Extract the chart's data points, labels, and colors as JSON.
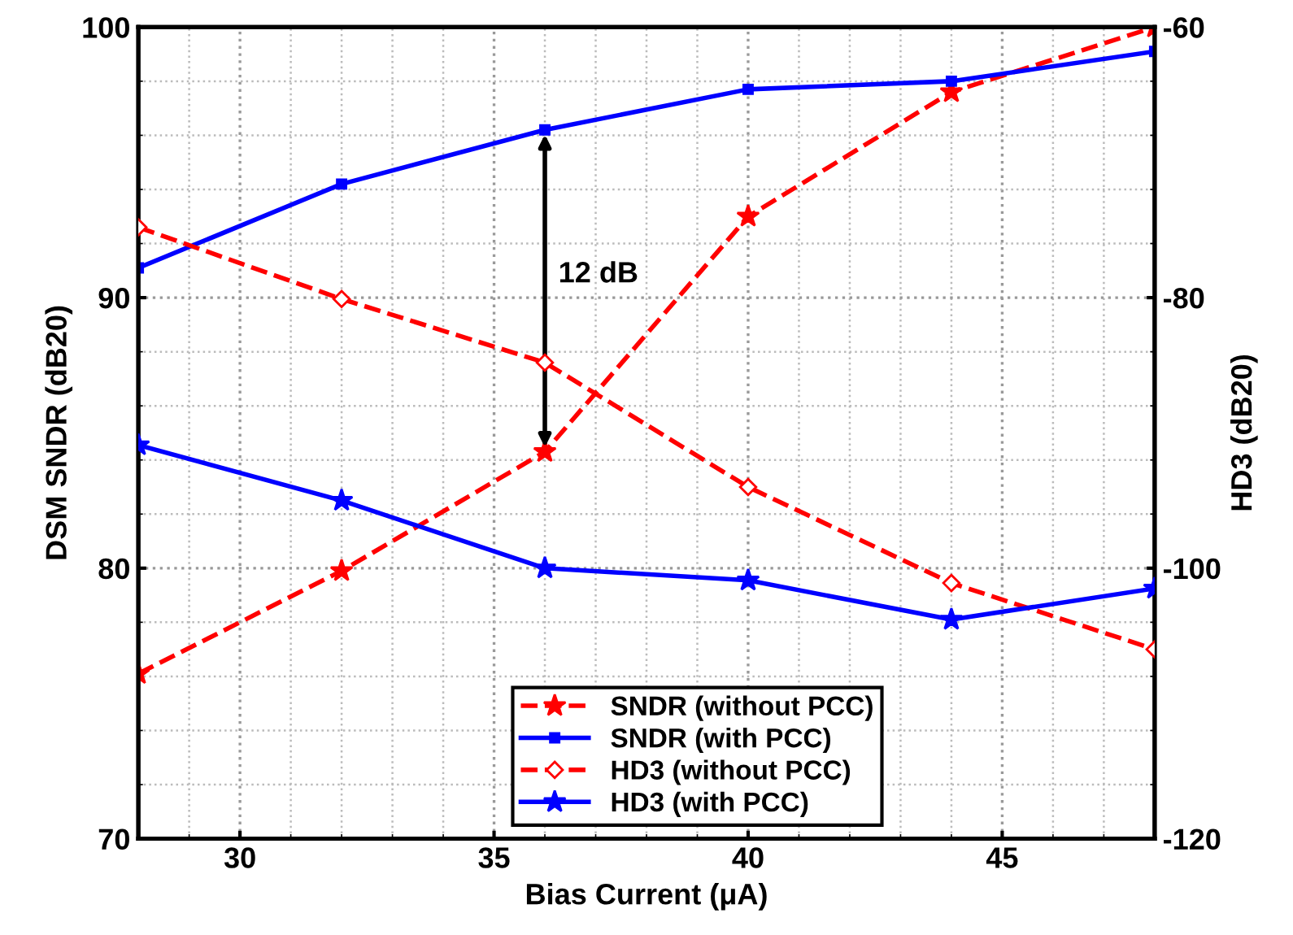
{
  "chart_data": {
    "type": "line",
    "xlabel": "Bias Current (μA)",
    "ylabel": "DSM SNDR (dB20)",
    "y2label": "HD3 (dB20)",
    "x": [
      28,
      32,
      36,
      40,
      44,
      48
    ],
    "series": [
      {
        "name": "SNDR (without PCC)",
        "color": "#ff0000",
        "values": [
          76.1,
          79.9,
          84.3,
          93.0,
          97.6,
          100
        ],
        "marker": "star",
        "line_style": "dashed"
      },
      {
        "name": "SNDR (with PCC)",
        "color": "#0000ff",
        "values": [
          91.1,
          94.2,
          96.2,
          97.7,
          98.0,
          99.1
        ],
        "marker": "square",
        "line_style": "solid"
      },
      {
        "name": "HD3 (without PCC)",
        "color": "#ff0000",
        "values": [
          -74.8,
          -80.1,
          -84.8,
          -94.0,
          -101.1,
          -106.0
        ],
        "marker": "diamond",
        "line_style": "dashed",
        "axis": "y2"
      },
      {
        "name": "HD3 (with PCC)",
        "color": "#0000ff",
        "values": [
          -90.9,
          -95.0,
          -100.0,
          -100.9,
          -103.8,
          -101.5
        ],
        "marker": "star",
        "line_style": "solid",
        "axis": "y2"
      }
    ],
    "xlim": [
      28,
      48
    ],
    "xticks": [
      30,
      35,
      40,
      45
    ],
    "ylim": [
      70,
      100
    ],
    "yticks": [
      70,
      80,
      90,
      100
    ],
    "y2lim": [
      -120,
      -60
    ],
    "y2ticks": [
      -120,
      -100,
      -80,
      -60
    ],
    "annotations": [
      "12 dB"
    ],
    "grid": true,
    "legend": "bottom"
  }
}
